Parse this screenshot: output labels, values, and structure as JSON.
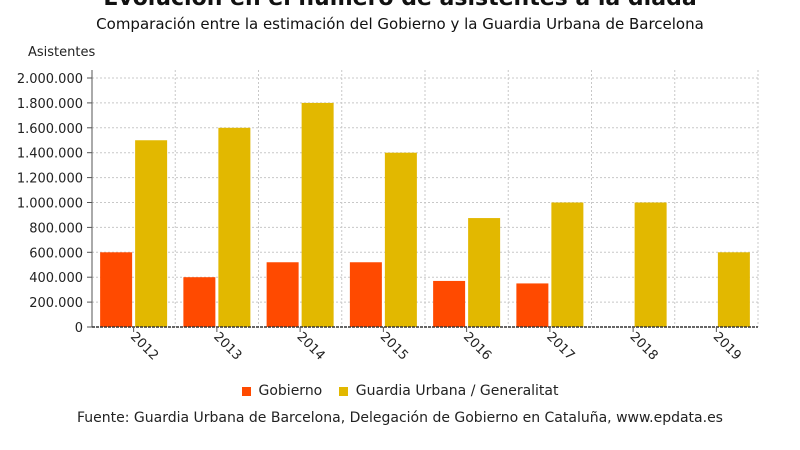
{
  "title": "Evolución en el número de asistentes a la diada",
  "subtitle": "Comparación entre la estimación del Gobierno y la Guardia Urbana de Barcelona",
  "source": "Fuente: Guardia Urbana de Barcelona, Delegación de Gobierno en Cataluña, www.epdata.es",
  "colors": {
    "gobierno": "#ff4a00",
    "guardia": "#e2b800"
  },
  "chart_data": {
    "type": "bar",
    "title": "Evolución en el número de asistentes a la diada",
    "subtitle": "Comparación entre la estimación del Gobierno y la Guardia Urbana de Barcelona",
    "ylabel": "Asistentes",
    "xlabel": "",
    "categories": [
      "2012",
      "2013",
      "2014",
      "2015",
      "2016",
      "2017",
      "2018",
      "2019"
    ],
    "series": [
      {
        "name": "Gobierno",
        "values": [
          600000,
          400000,
          520000,
          520000,
          370000,
          350000,
          null,
          null
        ]
      },
      {
        "name": "Guardia Urbana / Generalitat",
        "values": [
          1500000,
          1600000,
          1800000,
          1400000,
          875000,
          1000000,
          1000000,
          600000
        ]
      }
    ],
    "ylim": [
      0,
      2000000
    ],
    "yticks": [
      0,
      200000,
      400000,
      600000,
      800000,
      1000000,
      1200000,
      1400000,
      1600000,
      1800000,
      2000000
    ],
    "ytick_labels": [
      "0",
      "200.000",
      "400.000",
      "600.000",
      "800.000",
      "1.000.000",
      "1.200.000",
      "1.400.000",
      "1.600.000",
      "1.800.000",
      "2.000.000"
    ],
    "grid": true,
    "legend": "bottom-center"
  }
}
